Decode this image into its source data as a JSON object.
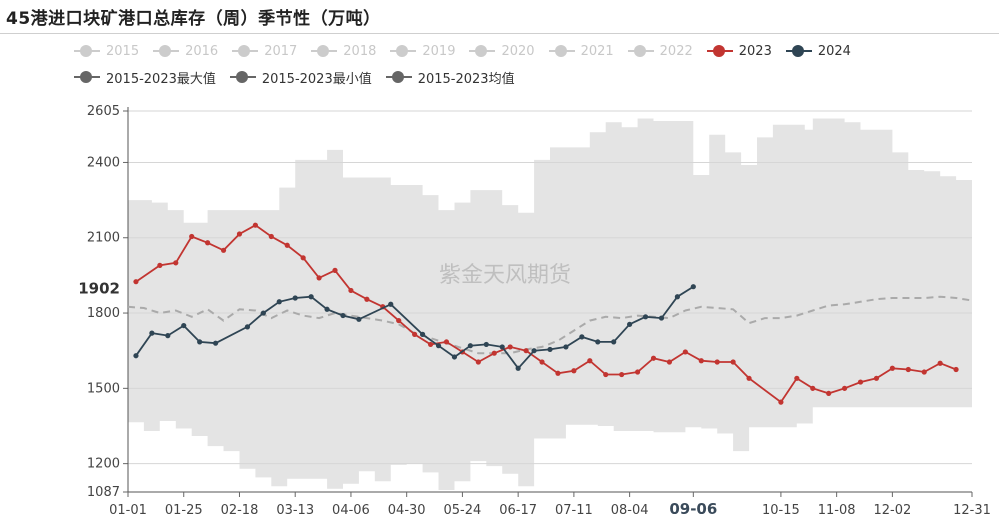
{
  "title": "45港进口块矿港口总库存（周）季节性（万吨）",
  "watermark": "紫金天风期货",
  "legend": [
    [
      {
        "label": "2015",
        "color": "#cccccc",
        "active": false
      },
      {
        "label": "2016",
        "color": "#cccccc",
        "active": false
      },
      {
        "label": "2017",
        "color": "#cccccc",
        "active": false
      },
      {
        "label": "2018",
        "color": "#cccccc",
        "active": false
      },
      {
        "label": "2019",
        "color": "#cccccc",
        "active": false
      },
      {
        "label": "2020",
        "color": "#cccccc",
        "active": false
      },
      {
        "label": "2021",
        "color": "#cccccc",
        "active": false
      },
      {
        "label": "2022",
        "color": "#cccccc",
        "active": false
      },
      {
        "label": "2023",
        "color": "#c23531",
        "active": true
      },
      {
        "label": "2024",
        "color": "#2f4554",
        "active": true
      }
    ],
    [
      {
        "label": "2015-2023最大值",
        "color": "#666666",
        "active": true
      },
      {
        "label": "2015-2023最小值",
        "color": "#666666",
        "active": true
      },
      {
        "label": "2015-2023均值",
        "color": "#666666",
        "active": true
      }
    ]
  ],
  "chart_data": {
    "type": "line",
    "title": "45港进口块矿港口总库存（周）季节性（万吨）",
    "x_ticks": [
      "01-01",
      "01-25",
      "02-18",
      "03-13",
      "04-06",
      "04-30",
      "05-24",
      "06-17",
      "07-11",
      "08-04",
      "09-06",
      "10-15",
      "11-08",
      "12-02",
      "12-31"
    ],
    "x_highlight": "09-06",
    "y_ticks": [
      1087,
      1200,
      1500,
      1800,
      2100,
      2400,
      2605
    ],
    "ylim": [
      1087,
      2605
    ],
    "y_highlight": 1902,
    "grid": true,
    "legend_position": "top",
    "series": [
      {
        "name": "2023",
        "color": "#c23531",
        "values": [
          [
            1,
            1925
          ],
          [
            4,
            1990
          ],
          [
            6,
            2000
          ],
          [
            8,
            2105
          ],
          [
            10,
            2080
          ],
          [
            12,
            2050
          ],
          [
            14,
            2115
          ],
          [
            16,
            2150
          ],
          [
            18,
            2105
          ],
          [
            20,
            2070
          ],
          [
            22,
            2020
          ],
          [
            24,
            1940
          ],
          [
            26,
            1970
          ],
          [
            28,
            1890
          ],
          [
            30,
            1855
          ],
          [
            32,
            1825
          ],
          [
            34,
            1770
          ],
          [
            36,
            1715
          ],
          [
            38,
            1675
          ],
          [
            40,
            1685
          ],
          [
            42,
            1645
          ],
          [
            44,
            1605
          ],
          [
            46,
            1640
          ],
          [
            48,
            1665
          ],
          [
            50,
            1650
          ],
          [
            52,
            1605
          ],
          [
            54,
            1560
          ],
          [
            56,
            1570
          ],
          [
            58,
            1610
          ],
          [
            60,
            1555
          ],
          [
            62,
            1555
          ],
          [
            64,
            1565
          ],
          [
            66,
            1620
          ],
          [
            68,
            1605
          ],
          [
            70,
            1645
          ],
          [
            72,
            1610
          ],
          [
            74,
            1605
          ],
          [
            76,
            1605
          ],
          [
            78,
            1540
          ],
          [
            82,
            1445
          ],
          [
            84,
            1540
          ],
          [
            86,
            1500
          ],
          [
            88,
            1480
          ],
          [
            90,
            1500
          ],
          [
            92,
            1525
          ],
          [
            94,
            1540
          ],
          [
            96,
            1580
          ],
          [
            98,
            1575
          ],
          [
            100,
            1565
          ],
          [
            102,
            1600
          ],
          [
            104,
            1575
          ]
        ]
      },
      {
        "name": "2024",
        "color": "#2f4554",
        "values": [
          [
            1,
            1630
          ],
          [
            3,
            1720
          ],
          [
            5,
            1710
          ],
          [
            7,
            1750
          ],
          [
            9,
            1685
          ],
          [
            11,
            1680
          ],
          [
            15,
            1745
          ],
          [
            17,
            1800
          ],
          [
            19,
            1845
          ],
          [
            21,
            1860
          ],
          [
            23,
            1865
          ],
          [
            25,
            1815
          ],
          [
            27,
            1790
          ],
          [
            29,
            1775
          ],
          [
            33,
            1835
          ],
          [
            37,
            1715
          ],
          [
            39,
            1670
          ],
          [
            41,
            1625
          ],
          [
            43,
            1670
          ],
          [
            45,
            1675
          ],
          [
            47,
            1665
          ],
          [
            49,
            1580
          ],
          [
            51,
            1650
          ],
          [
            53,
            1655
          ],
          [
            55,
            1665
          ],
          [
            57,
            1705
          ],
          [
            59,
            1685
          ],
          [
            61,
            1685
          ],
          [
            63,
            1755
          ],
          [
            65,
            1785
          ],
          [
            67,
            1780
          ],
          [
            69,
            1865
          ],
          [
            71,
            1905
          ]
        ]
      },
      {
        "name": "2015-2023最大值",
        "color": "#dcdcdc",
        "values": [
          [
            0,
            2250
          ],
          [
            3,
            2250
          ],
          [
            3,
            2240
          ],
          [
            5,
            2240
          ],
          [
            5,
            2210
          ],
          [
            7,
            2210
          ],
          [
            7,
            2160
          ],
          [
            10,
            2160
          ],
          [
            10,
            2210
          ],
          [
            19,
            2210
          ],
          [
            19,
            2300
          ],
          [
            21,
            2300
          ],
          [
            21,
            2410
          ],
          [
            25,
            2410
          ],
          [
            25,
            2450
          ],
          [
            27,
            2450
          ],
          [
            27,
            2340
          ],
          [
            33,
            2340
          ],
          [
            33,
            2310
          ],
          [
            37,
            2310
          ],
          [
            37,
            2270
          ],
          [
            39,
            2270
          ],
          [
            39,
            2210
          ],
          [
            41,
            2210
          ],
          [
            41,
            2240
          ],
          [
            43,
            2240
          ],
          [
            43,
            2290
          ],
          [
            47,
            2290
          ],
          [
            47,
            2230
          ],
          [
            49,
            2230
          ],
          [
            49,
            2200
          ],
          [
            51,
            2200
          ],
          [
            51,
            2410
          ],
          [
            53,
            2410
          ],
          [
            53,
            2460
          ],
          [
            58,
            2460
          ],
          [
            58,
            2520
          ],
          [
            60,
            2520
          ],
          [
            60,
            2560
          ],
          [
            62,
            2560
          ],
          [
            62,
            2540
          ],
          [
            64,
            2540
          ],
          [
            64,
            2575
          ],
          [
            66,
            2575
          ],
          [
            66,
            2565
          ],
          [
            71,
            2565
          ],
          [
            71,
            2350
          ],
          [
            73,
            2350
          ],
          [
            73,
            2510
          ],
          [
            75,
            2510
          ],
          [
            75,
            2440
          ],
          [
            77,
            2440
          ],
          [
            77,
            2390
          ],
          [
            79,
            2390
          ],
          [
            79,
            2500
          ],
          [
            81,
            2500
          ],
          [
            81,
            2550
          ],
          [
            85,
            2550
          ],
          [
            85,
            2530
          ],
          [
            86,
            2530
          ],
          [
            86,
            2575
          ],
          [
            90,
            2575
          ],
          [
            90,
            2560
          ],
          [
            92,
            2560
          ],
          [
            92,
            2530
          ],
          [
            96,
            2530
          ],
          [
            96,
            2440
          ],
          [
            98,
            2440
          ],
          [
            98,
            2370
          ],
          [
            100,
            2370
          ],
          [
            100,
            2365
          ],
          [
            102,
            2365
          ],
          [
            102,
            2345
          ],
          [
            104,
            2345
          ],
          [
            104,
            2330
          ],
          [
            106,
            2330
          ]
        ]
      },
      {
        "name": "2015-2023最小值",
        "color": "#dcdcdc",
        "values": [
          [
            0,
            1365
          ],
          [
            2,
            1365
          ],
          [
            2,
            1330
          ],
          [
            4,
            1330
          ],
          [
            4,
            1370
          ],
          [
            6,
            1370
          ],
          [
            6,
            1340
          ],
          [
            8,
            1340
          ],
          [
            8,
            1310
          ],
          [
            10,
            1310
          ],
          [
            10,
            1270
          ],
          [
            12,
            1270
          ],
          [
            12,
            1250
          ],
          [
            14,
            1250
          ],
          [
            14,
            1180
          ],
          [
            16,
            1180
          ],
          [
            16,
            1145
          ],
          [
            18,
            1145
          ],
          [
            18,
            1110
          ],
          [
            20,
            1110
          ],
          [
            20,
            1140
          ],
          [
            25,
            1140
          ],
          [
            25,
            1100
          ],
          [
            27,
            1100
          ],
          [
            27,
            1120
          ],
          [
            29,
            1120
          ],
          [
            29,
            1170
          ],
          [
            31,
            1170
          ],
          [
            31,
            1130
          ],
          [
            33,
            1130
          ],
          [
            33,
            1195
          ],
          [
            35,
            1195
          ],
          [
            35,
            1200
          ],
          [
            37,
            1200
          ],
          [
            37,
            1165
          ],
          [
            39,
            1165
          ],
          [
            39,
            1095
          ],
          [
            41,
            1095
          ],
          [
            41,
            1130
          ],
          [
            43,
            1130
          ],
          [
            43,
            1210
          ],
          [
            45,
            1210
          ],
          [
            45,
            1190
          ],
          [
            47,
            1190
          ],
          [
            47,
            1160
          ],
          [
            49,
            1160
          ],
          [
            49,
            1110
          ],
          [
            51,
            1110
          ],
          [
            51,
            1300
          ],
          [
            55,
            1300
          ],
          [
            55,
            1355
          ],
          [
            59,
            1355
          ],
          [
            59,
            1350
          ],
          [
            61,
            1350
          ],
          [
            61,
            1330
          ],
          [
            66,
            1330
          ],
          [
            66,
            1325
          ],
          [
            70,
            1325
          ],
          [
            70,
            1345
          ],
          [
            72,
            1345
          ],
          [
            72,
            1340
          ],
          [
            74,
            1340
          ],
          [
            74,
            1320
          ],
          [
            76,
            1320
          ],
          [
            76,
            1250
          ],
          [
            78,
            1250
          ],
          [
            78,
            1345
          ],
          [
            84,
            1345
          ],
          [
            84,
            1360
          ],
          [
            86,
            1360
          ],
          [
            86,
            1425
          ],
          [
            106,
            1425
          ]
        ]
      },
      {
        "name": "2015-2023均值",
        "color": "#aaaaaa",
        "values": [
          [
            0,
            1825
          ],
          [
            2,
            1820
          ],
          [
            4,
            1800
          ],
          [
            6,
            1810
          ],
          [
            8,
            1785
          ],
          [
            10,
            1815
          ],
          [
            12,
            1770
          ],
          [
            14,
            1815
          ],
          [
            16,
            1810
          ],
          [
            18,
            1780
          ],
          [
            20,
            1810
          ],
          [
            22,
            1790
          ],
          [
            24,
            1780
          ],
          [
            26,
            1800
          ],
          [
            28,
            1790
          ],
          [
            30,
            1780
          ],
          [
            32,
            1770
          ],
          [
            34,
            1755
          ],
          [
            36,
            1720
          ],
          [
            38,
            1700
          ],
          [
            40,
            1680
          ],
          [
            42,
            1660
          ],
          [
            44,
            1640
          ],
          [
            46,
            1640
          ],
          [
            48,
            1640
          ],
          [
            50,
            1655
          ],
          [
            52,
            1665
          ],
          [
            54,
            1690
          ],
          [
            56,
            1730
          ],
          [
            58,
            1770
          ],
          [
            60,
            1785
          ],
          [
            62,
            1780
          ],
          [
            64,
            1790
          ],
          [
            66,
            1785
          ],
          [
            68,
            1780
          ],
          [
            70,
            1810
          ],
          [
            72,
            1825
          ],
          [
            74,
            1820
          ],
          [
            76,
            1815
          ],
          [
            78,
            1760
          ],
          [
            80,
            1780
          ],
          [
            82,
            1780
          ],
          [
            84,
            1790
          ],
          [
            86,
            1810
          ],
          [
            88,
            1830
          ],
          [
            90,
            1835
          ],
          [
            92,
            1845
          ],
          [
            94,
            1855
          ],
          [
            96,
            1860
          ],
          [
            98,
            1860
          ],
          [
            100,
            1860
          ],
          [
            102,
            1865
          ],
          [
            104,
            1860
          ],
          [
            106,
            1850
          ]
        ]
      }
    ]
  }
}
